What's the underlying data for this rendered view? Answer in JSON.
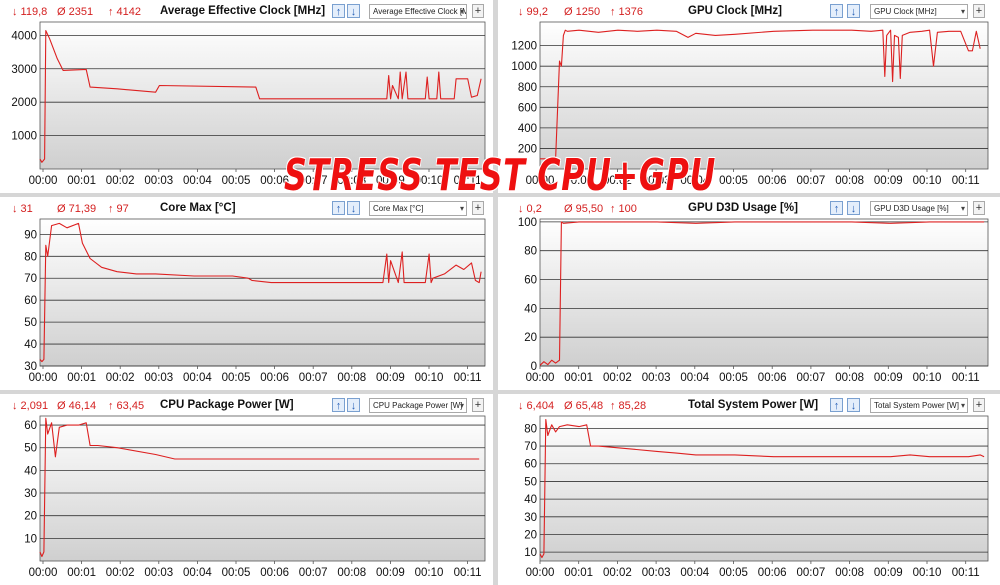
{
  "overlay_text": "STRESS TEST CPU+GPU",
  "colors": {
    "line": "#dd2020",
    "stat": "#d42020",
    "grid": "#333333",
    "bg_top": "#ffffff",
    "bg_bottom": "#cfcfcf"
  },
  "buttons": {
    "sort_up": "↑",
    "sort_down": "↓",
    "add": "+"
  },
  "x_ticks": [
    "00:00",
    "00:01",
    "00:02",
    "00:03",
    "00:04",
    "00:05",
    "00:06",
    "00:07",
    "00:08",
    "00:09",
    "00:10",
    "00:11"
  ],
  "panels": [
    {
      "title": "Average Effective Clock [MHz]",
      "select": "Average Effective Clock [M",
      "stats": {
        "min": "↓ 119,8",
        "avg": "Ø 2351",
        "max": "↑ 4142"
      }
    },
    {
      "title": "GPU Clock [MHz]",
      "select": "GPU Clock [MHz]",
      "stats": {
        "min": "↓ 99,2",
        "avg": "Ø 1250",
        "max": "↑ 1376"
      }
    },
    {
      "title": "Core Max [°C]",
      "select": "Core Max [°C]",
      "stats": {
        "min": "↓ 31",
        "avg": "Ø 71,39",
        "max": "↑ 97"
      }
    },
    {
      "title": "GPU D3D Usage [%]",
      "select": "GPU D3D Usage [%]",
      "stats": {
        "min": "↓ 0,2",
        "avg": "Ø 95,50",
        "max": "↑ 100"
      }
    },
    {
      "title": "CPU Package Power [W]",
      "select": "CPU Package Power [W]",
      "stats": {
        "min": "↓ 2,091",
        "avg": "Ø 46,14",
        "max": "↑ 63,45"
      }
    },
    {
      "title": "Total System Power [W]",
      "select": "Total System Power [W]",
      "stats": {
        "min": "↓ 6,404",
        "avg": "Ø 65,48",
        "max": "↑ 85,28"
      }
    }
  ],
  "chart_data": [
    {
      "type": "line",
      "title": "Average Effective Clock [MHz]",
      "ylim": [
        0,
        4400
      ],
      "yticks": [
        1000,
        2000,
        3000,
        4000
      ],
      "x_unit": "minutes",
      "x": [
        0,
        0.05,
        0.12,
        0.15,
        0.25,
        0.45,
        0.6,
        1.2,
        1.3,
        2.0,
        3.0,
        3.1,
        5.6,
        5.7,
        9.0,
        9.05,
        9.1,
        9.15,
        9.3,
        9.35,
        9.4,
        9.5,
        9.55,
        9.6,
        10.0,
        10.05,
        10.1,
        10.3,
        10.35,
        10.4,
        10.75,
        10.8,
        11.1,
        11.2,
        11.35,
        11.45
      ],
      "values": [
        300,
        200,
        300,
        4142,
        3900,
        3300,
        2950,
        2980,
        2450,
        2400,
        2300,
        2500,
        2450,
        2100,
        2100,
        2800,
        2100,
        2500,
        2100,
        2900,
        2100,
        2900,
        2100,
        2100,
        2100,
        2750,
        2100,
        2100,
        2900,
        2100,
        2100,
        2700,
        2700,
        2150,
        2200,
        2700
      ]
    },
    {
      "type": "line",
      "title": "GPU Clock [MHz]",
      "ylim": [
        0,
        1430
      ],
      "yticks": [
        200,
        400,
        600,
        800,
        1000,
        1200
      ],
      "x_unit": "minutes",
      "x": [
        0,
        0.4,
        0.5,
        0.55,
        0.6,
        0.65,
        0.7,
        1.0,
        1.5,
        2.0,
        2.5,
        3.0,
        3.5,
        3.8,
        4.0,
        4.5,
        5.0,
        6.0,
        7.0,
        8.0,
        8.5,
        8.8,
        8.85,
        8.9,
        9.0,
        9.05,
        9.1,
        9.2,
        9.25,
        9.3,
        9.5,
        9.8,
        10.0,
        10.1,
        10.2,
        10.5,
        10.8,
        11.0,
        11.1,
        11.2,
        11.3
      ],
      "values": [
        99,
        99,
        1050,
        1000,
        1300,
        1350,
        1340,
        1350,
        1330,
        1350,
        1340,
        1350,
        1340,
        1280,
        1320,
        1300,
        1310,
        1340,
        1350,
        1350,
        1340,
        1350,
        900,
        1300,
        1350,
        850,
        1300,
        1280,
        880,
        1300,
        1330,
        1340,
        1350,
        1000,
        1330,
        1340,
        1340,
        1150,
        1150,
        1340,
        1170
      ]
    },
    {
      "type": "line",
      "title": "Core Max [°C]",
      "ylim": [
        30,
        97
      ],
      "yticks": [
        30,
        40,
        50,
        60,
        70,
        80,
        90
      ],
      "x_unit": "minutes",
      "x": [
        0,
        0.05,
        0.1,
        0.15,
        0.2,
        0.3,
        0.5,
        0.7,
        1.0,
        1.1,
        1.3,
        1.6,
        2.0,
        2.5,
        3.0,
        4.0,
        5.0,
        5.4,
        5.5,
        6.0,
        7.0,
        8.0,
        8.9,
        9.0,
        9.05,
        9.1,
        9.3,
        9.4,
        9.45,
        9.5,
        10.0,
        10.1,
        10.15,
        10.2,
        10.5,
        10.8,
        11.0,
        11.2,
        11.3,
        11.4,
        11.45
      ],
      "values": [
        33,
        32,
        33,
        85,
        80,
        94,
        95,
        93,
        95,
        86,
        79,
        75,
        73,
        72,
        72,
        71,
        71,
        70,
        69,
        68,
        68,
        68,
        68,
        81,
        68,
        78,
        68,
        82,
        68,
        68,
        68,
        81,
        68,
        70,
        72,
        76,
        74,
        77,
        69,
        68,
        73
      ]
    },
    {
      "type": "line",
      "title": "GPU D3D Usage [%]",
      "ylim": [
        0,
        102
      ],
      "yticks": [
        0,
        20,
        40,
        60,
        80,
        100
      ],
      "x_unit": "minutes",
      "x": [
        0,
        0.1,
        0.2,
        0.3,
        0.4,
        0.5,
        0.55,
        0.6,
        1.0,
        2.0,
        3.0,
        4.0,
        5.0,
        6.0,
        7.0,
        8.0,
        9.0,
        10.0,
        11.0,
        11.4
      ],
      "values": [
        0.5,
        3,
        1,
        4,
        2,
        4,
        100,
        99,
        100,
        100,
        100,
        99,
        100,
        100,
        100,
        100,
        99,
        100,
        100,
        100
      ]
    },
    {
      "type": "line",
      "title": "CPU Package Power [W]",
      "ylim": [
        0,
        64
      ],
      "yticks": [
        10,
        20,
        30,
        40,
        50,
        60
      ],
      "x_unit": "minutes",
      "x": [
        0,
        0.05,
        0.1,
        0.15,
        0.2,
        0.3,
        0.4,
        0.5,
        0.7,
        1.0,
        1.2,
        1.3,
        1.5,
        2.0,
        3.0,
        3.5,
        4.0,
        5.0,
        6.0,
        7.0,
        8.0,
        9.0,
        9.5,
        10.0,
        11.0,
        11.4
      ],
      "values": [
        4,
        2,
        4,
        63,
        56,
        61,
        46,
        59,
        60,
        60,
        61,
        51,
        51,
        50,
        47,
        45,
        45,
        45,
        45,
        45,
        45,
        45,
        45,
        45,
        45,
        45
      ]
    },
    {
      "type": "line",
      "title": "Total System Power [W]",
      "ylim": [
        5,
        87
      ],
      "yticks": [
        10,
        20,
        30,
        40,
        50,
        60,
        70,
        80
      ],
      "x_unit": "minutes",
      "x": [
        0,
        0.05,
        0.1,
        0.15,
        0.2,
        0.3,
        0.4,
        0.5,
        0.7,
        1.0,
        1.2,
        1.3,
        1.5,
        2.0,
        3.0,
        3.5,
        4.0,
        5.0,
        6.0,
        7.0,
        8.0,
        9.0,
        9.5,
        10.0,
        11.0,
        11.3,
        11.4
      ],
      "values": [
        9,
        7,
        9,
        85,
        76,
        82,
        78,
        81,
        82,
        81,
        82,
        70,
        70,
        69,
        67,
        66,
        65,
        65,
        64,
        64,
        64,
        64,
        65,
        64,
        64,
        65,
        64
      ]
    }
  ]
}
